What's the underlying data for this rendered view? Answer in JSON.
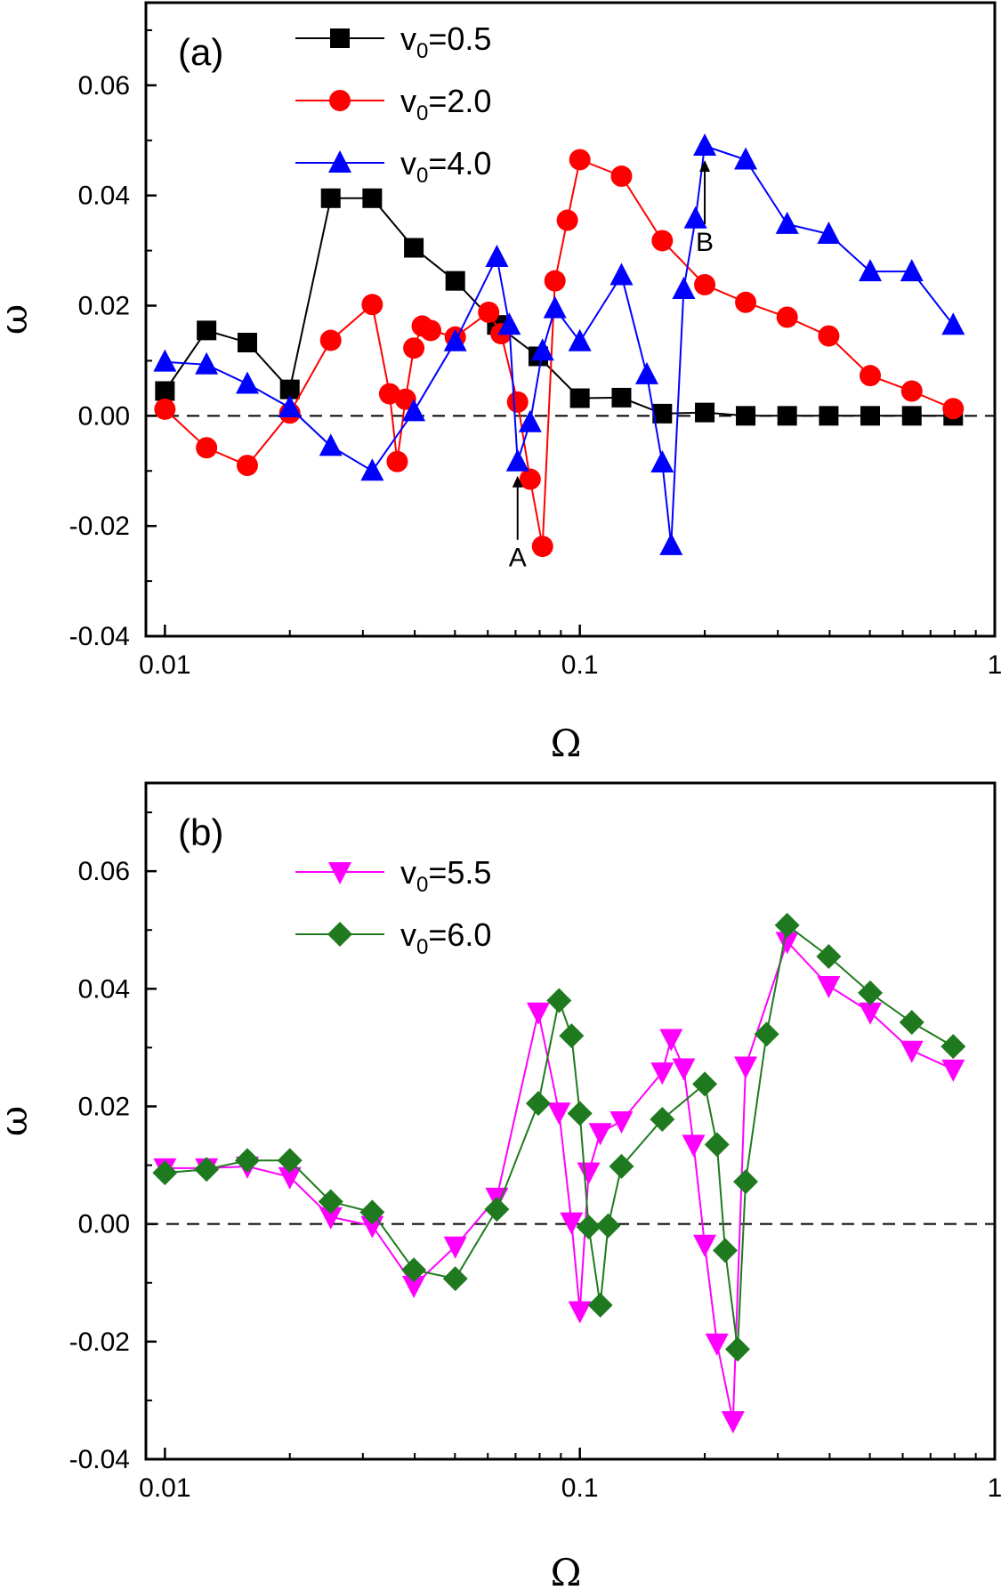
{
  "chart_data": [
    {
      "type": "line",
      "panel_label": "(a)",
      "xlabel": "Ω",
      "ylabel": "ω",
      "xscale": "log",
      "xlim": [
        0.009,
        1.0
      ],
      "ylim": [
        -0.04,
        0.075
      ],
      "xticks": [
        {
          "value": 0.01,
          "label": "0.01"
        },
        {
          "value": 0.1,
          "label": "0.1"
        },
        {
          "value": 1,
          "label": "1"
        }
      ],
      "yticks": [
        {
          "value": -0.04,
          "label": "-0.04"
        },
        {
          "value": -0.02,
          "label": "-0.02"
        },
        {
          "value": 0.0,
          "label": "0.00"
        },
        {
          "value": 0.02,
          "label": "0.02"
        },
        {
          "value": 0.04,
          "label": "0.04"
        },
        {
          "value": 0.06,
          "label": "0.06"
        }
      ],
      "zero_line": "dashed",
      "legend_position": "top-left",
      "series": [
        {
          "name": "v0=0.5",
          "label_base": "v",
          "label_sub": "0",
          "label_rest": "=0.5",
          "color": "#000000",
          "marker": "square",
          "x": [
            0.01,
            0.0126,
            0.0158,
            0.02,
            0.0251,
            0.0316,
            0.0398,
            0.0501,
            0.0631,
            0.0794,
            0.1,
            0.126,
            0.158,
            0.2,
            0.251,
            0.316,
            0.398,
            0.501,
            0.631,
            0.794
          ],
          "y": [
            0.0045,
            0.0155,
            0.0133,
            0.0048,
            0.0395,
            0.0395,
            0.0305,
            0.0245,
            0.0165,
            0.0108,
            0.0032,
            0.0033,
            0.0004,
            0.0006,
            0.0,
            0.0,
            0.0,
            0.0,
            0.0,
            0.0
          ]
        },
        {
          "name": "v0=2.0",
          "label_base": "v",
          "label_sub": "0",
          "label_rest": "=2.0",
          "color": "#ff0000",
          "marker": "circle",
          "x": [
            0.01,
            0.0126,
            0.0158,
            0.02,
            0.0251,
            0.0316,
            0.0348,
            0.0363,
            0.038,
            0.0398,
            0.0417,
            0.0437,
            0.0501,
            0.0603,
            0.0646,
            0.0708,
            0.0759,
            0.0813,
            0.0871,
            0.0933,
            0.1,
            0.126,
            0.158,
            0.2,
            0.251,
            0.316,
            0.398,
            0.501,
            0.631,
            0.794
          ],
          "y": [
            0.0012,
            -0.0058,
            -0.009,
            0.0005,
            0.0137,
            0.0202,
            0.004,
            -0.0083,
            0.003,
            0.0123,
            0.0163,
            0.0155,
            0.0143,
            0.0188,
            0.0149,
            0.0025,
            -0.0115,
            -0.0237,
            0.0245,
            0.0355,
            0.0465,
            0.0435,
            0.0318,
            0.0238,
            0.0206,
            0.0179,
            0.0145,
            0.0073,
            0.0045,
            0.0013
          ]
        },
        {
          "name": "v0=4.0",
          "label_base": "v",
          "label_sub": "0",
          "label_rest": "=4.0",
          "color": "#0000ff",
          "marker": "triangle-up",
          "x": [
            0.01,
            0.0126,
            0.0158,
            0.02,
            0.0251,
            0.0316,
            0.0398,
            0.0501,
            0.0631,
            0.0676,
            0.0708,
            0.0759,
            0.0813,
            0.0871,
            0.1,
            0.126,
            0.145,
            0.158,
            0.166,
            0.178,
            0.19,
            0.2,
            0.251,
            0.316,
            0.398,
            0.501,
            0.631,
            0.794
          ],
          "y": [
            0.0098,
            0.0093,
            0.0058,
            0.0015,
            -0.0055,
            -0.01,
            0.0008,
            0.0135,
            0.0288,
            0.0165,
            -0.0083,
            -0.0012,
            0.0118,
            0.0195,
            0.0135,
            0.0255,
            0.0075,
            -0.0085,
            -0.0235,
            0.023,
            0.0358,
            0.049,
            0.0465,
            0.0348,
            0.033,
            0.0262,
            0.0262,
            0.0165
          ]
        }
      ],
      "annotations": [
        {
          "text": "A",
          "x": 0.0708,
          "y": -0.0083,
          "arrow": "up"
        },
        {
          "text": "B",
          "x": 0.2,
          "y": 0.049,
          "arrow": "up"
        }
      ]
    },
    {
      "type": "line",
      "panel_label": "(b)",
      "xlabel": "Ω",
      "ylabel": "ω",
      "xscale": "log",
      "xlim": [
        0.009,
        1.0
      ],
      "ylim": [
        -0.04,
        0.075
      ],
      "xticks": [
        {
          "value": 0.01,
          "label": "0.01"
        },
        {
          "value": 0.1,
          "label": "0.1"
        },
        {
          "value": 1,
          "label": "1"
        }
      ],
      "yticks": [
        {
          "value": -0.04,
          "label": "-0.04"
        },
        {
          "value": -0.02,
          "label": "-0.02"
        },
        {
          "value": 0.0,
          "label": "0.00"
        },
        {
          "value": 0.02,
          "label": "0.02"
        },
        {
          "value": 0.04,
          "label": "0.04"
        },
        {
          "value": 0.06,
          "label": "0.06"
        }
      ],
      "zero_line": "dashed",
      "legend_position": "top-left",
      "series": [
        {
          "name": "v0=5.5",
          "label_base": "v",
          "label_sub": "0",
          "label_rest": "=5.5",
          "color": "#ff00ff",
          "marker": "triangle-down",
          "x": [
            0.01,
            0.0126,
            0.0158,
            0.02,
            0.0251,
            0.0316,
            0.0398,
            0.0501,
            0.0631,
            0.0794,
            0.0891,
            0.0955,
            0.1,
            0.105,
            0.112,
            0.126,
            0.158,
            0.166,
            0.178,
            0.188,
            0.2,
            0.214,
            0.234,
            0.251,
            0.316,
            0.398,
            0.501,
            0.631,
            0.794
          ],
          "y": [
            0.0095,
            0.0095,
            0.0098,
            0.008,
            0.0012,
            -0.0003,
            -0.0105,
            -0.0038,
            0.0045,
            0.036,
            0.019,
            0.0003,
            -0.0148,
            0.0088,
            0.0155,
            0.0175,
            0.0258,
            0.0315,
            0.0265,
            0.0135,
            -0.0035,
            -0.0203,
            -0.0335,
            0.0268,
            0.048,
            0.0405,
            0.036,
            0.0295,
            0.0263
          ]
        },
        {
          "name": "v0=6.0",
          "label_base": "v",
          "label_sub": "0",
          "label_rest": "=6.0",
          "color": "#1f7a1f",
          "marker": "diamond",
          "x": [
            0.01,
            0.0126,
            0.0158,
            0.02,
            0.0251,
            0.0316,
            0.0398,
            0.0501,
            0.0631,
            0.0794,
            0.0891,
            0.0955,
            0.1,
            0.105,
            0.112,
            0.117,
            0.126,
            0.158,
            0.2,
            0.214,
            0.224,
            0.24,
            0.251,
            0.282,
            0.316,
            0.398,
            0.501,
            0.631,
            0.794
          ],
          "y": [
            0.0087,
            0.0093,
            0.0108,
            0.0108,
            0.0038,
            0.002,
            -0.0078,
            -0.0093,
            0.0025,
            0.0205,
            0.038,
            0.032,
            0.0188,
            -0.0005,
            -0.0138,
            -0.0003,
            0.0098,
            0.0178,
            0.0238,
            0.0135,
            -0.0045,
            -0.0213,
            0.0072,
            0.0323,
            0.0508,
            0.0455,
            0.0393,
            0.0343,
            0.0302
          ]
        }
      ]
    }
  ]
}
